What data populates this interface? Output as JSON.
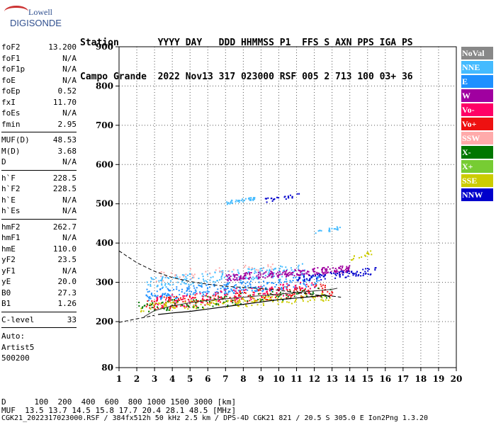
{
  "logo": {
    "top": "Lowell",
    "bottom": "DIGISONDE"
  },
  "header": {
    "row1": "Station       YYYY DAY   DDD HHMMSS P1  FFS S AXN PPS IGA PS",
    "row2": "Campo Grande  2022 Nov13 317 023000 RSF 005 2 713 100 03+ 36"
  },
  "params": [
    [
      {
        "k": "foF2",
        "v": "13.200"
      },
      {
        "k": "foF1",
        "v": "N/A"
      },
      {
        "k": "foF1p",
        "v": "N/A"
      },
      {
        "k": "foE",
        "v": "N/A"
      },
      {
        "k": "foEp",
        "v": "0.52"
      },
      {
        "k": "fxI",
        "v": "11.70"
      },
      {
        "k": "foEs",
        "v": "N/A"
      },
      {
        "k": "fmin",
        "v": "2.95"
      }
    ],
    [
      {
        "k": "MUF(D)",
        "v": "48.53"
      },
      {
        "k": "M(D)",
        "v": "3.68"
      },
      {
        "k": "D",
        "v": "N/A"
      }
    ],
    [
      {
        "k": "h`F",
        "v": "228.5"
      },
      {
        "k": "h`F2",
        "v": "228.5"
      },
      {
        "k": "h`E",
        "v": "N/A"
      },
      {
        "k": "h`Es",
        "v": "N/A"
      }
    ],
    [
      {
        "k": "hmF2",
        "v": "262.7"
      },
      {
        "k": "hmF1",
        "v": "N/A"
      },
      {
        "k": "hmE",
        "v": "110.0"
      },
      {
        "k": "yF2",
        "v": "23.5"
      },
      {
        "k": "yF1",
        "v": "N/A"
      },
      {
        "k": "yE",
        "v": "20.0"
      },
      {
        "k": "B0",
        "v": "27.3"
      },
      {
        "k": "B1",
        "v": "1.26"
      }
    ],
    [
      {
        "k": "C-level",
        "v": "33"
      }
    ]
  ],
  "auto": [
    "Auto:",
    "Artist5",
    "500200"
  ],
  "legend": [
    {
      "label": "NoVal",
      "color": "#888888"
    },
    {
      "label": "NNE",
      "color": "#44bbff"
    },
    {
      "label": "E",
      "color": "#1e90ff"
    },
    {
      "label": "W",
      "color": "#a000a0"
    },
    {
      "label": "Vo-",
      "color": "#ff0066"
    },
    {
      "label": "Vo+",
      "color": "#ee1111"
    },
    {
      "label": "SSW",
      "color": "#ffaaaa"
    },
    {
      "label": "X-",
      "color": "#007700"
    },
    {
      "label": "X+",
      "color": "#77cc33"
    },
    {
      "label": "SSE",
      "color": "#cccc00"
    },
    {
      "label": "NNW",
      "color": "#0000cc"
    }
  ],
  "footer": {
    "line1": "D      100  200  400  600  800 1000 1500 3000 [km]",
    "line2": "MUF  13.5 13.7 14.5 15.8 17.7 20.4 28.1 48.5 [MHz]",
    "line3": "CGK21_2022317023000.RSF / 384fx512h 50 kHz 2.5 km / DPS-4D CGK21 821 / 20.5 S 305.0 E Ion2Png 1.3.20"
  },
  "chart_data": {
    "type": "scatter",
    "xlim": [
      1,
      20
    ],
    "ylim": [
      80,
      900
    ],
    "xticks": [
      "1",
      "2",
      "3",
      "4",
      "5",
      "6",
      "7",
      "8",
      "9",
      "10",
      "11",
      "12",
      "13",
      "14",
      "15",
      "16",
      "17",
      "18",
      "19",
      "20"
    ],
    "yticks": [
      "80",
      "200",
      "300",
      "400",
      "500",
      "600",
      "700",
      "800",
      "900"
    ],
    "grid": true,
    "trace_o": [
      [
        3.2,
        218
      ],
      [
        4,
        222
      ],
      [
        5,
        226
      ],
      [
        6,
        232
      ],
      [
        7,
        238
      ],
      [
        8,
        244
      ],
      [
        9,
        250
      ],
      [
        10,
        256
      ],
      [
        11,
        260
      ],
      [
        12,
        264
      ],
      [
        12.6,
        268
      ],
      [
        12.9,
        262
      ]
    ],
    "trace_x": [
      [
        2.4,
        212
      ],
      [
        3,
        228
      ],
      [
        4,
        240
      ],
      [
        5,
        248
      ],
      [
        6,
        254
      ],
      [
        7,
        258
      ],
      [
        8,
        262
      ],
      [
        9,
        266
      ],
      [
        10,
        270
      ],
      [
        11,
        274
      ],
      [
        12,
        278
      ],
      [
        13,
        282
      ],
      [
        13.3,
        285
      ]
    ],
    "profile": [
      [
        1,
        380
      ],
      [
        2,
        350
      ],
      [
        3,
        328
      ],
      [
        4,
        312
      ],
      [
        5,
        302
      ],
      [
        6,
        295
      ],
      [
        7,
        290
      ],
      [
        8,
        287
      ],
      [
        9,
        284
      ],
      [
        10,
        280
      ],
      [
        11,
        274
      ],
      [
        12,
        268
      ],
      [
        13,
        265
      ],
      [
        13.5,
        262
      ]
    ],
    "profile_low": [
      [
        1,
        198
      ],
      [
        2,
        207
      ],
      [
        2.6,
        212
      ],
      [
        3,
        216
      ]
    ],
    "clusters": [
      {
        "name": "E",
        "x": [
          2.5,
          12.5
        ],
        "y": [
          255,
          320
        ],
        "n": 260
      },
      {
        "name": "NNE",
        "x": [
          2.5,
          11.5
        ],
        "y": [
          285,
          350
        ],
        "n": 180
      },
      {
        "name": "W",
        "x": [
          7,
          14
        ],
        "y": [
          305,
          345
        ],
        "n": 220
      },
      {
        "name": "Vo+",
        "x": [
          2.5,
          13
        ],
        "y": [
          230,
          300
        ],
        "n": 230
      },
      {
        "name": "Vo-",
        "x": [
          3,
          12
        ],
        "y": [
          235,
          305
        ],
        "n": 120
      },
      {
        "name": "SSE",
        "x": [
          2,
          13
        ],
        "y": [
          225,
          275
        ],
        "n": 160
      },
      {
        "name": "X-",
        "x": [
          2,
          13
        ],
        "y": [
          225,
          290
        ],
        "n": 110
      },
      {
        "name": "NNW",
        "x": [
          11,
          15.5
        ],
        "y": [
          300,
          340
        ],
        "n": 90
      },
      {
        "name": "SSW",
        "x": [
          3,
          10
        ],
        "y": [
          300,
          360
        ],
        "n": 40
      },
      {
        "name": "NNE",
        "x": [
          7,
          8.6
        ],
        "y": [
          500,
          520
        ],
        "n": 40
      },
      {
        "name": "NNW",
        "x": [
          9.2,
          11.2
        ],
        "y": [
          505,
          530
        ],
        "n": 25
      },
      {
        "name": "NNE",
        "x": [
          12,
          13.5
        ],
        "y": [
          425,
          445
        ],
        "n": 20
      },
      {
        "name": "SSE",
        "x": [
          14,
          15.2
        ],
        "y": [
          355,
          385
        ],
        "n": 15
      }
    ]
  }
}
